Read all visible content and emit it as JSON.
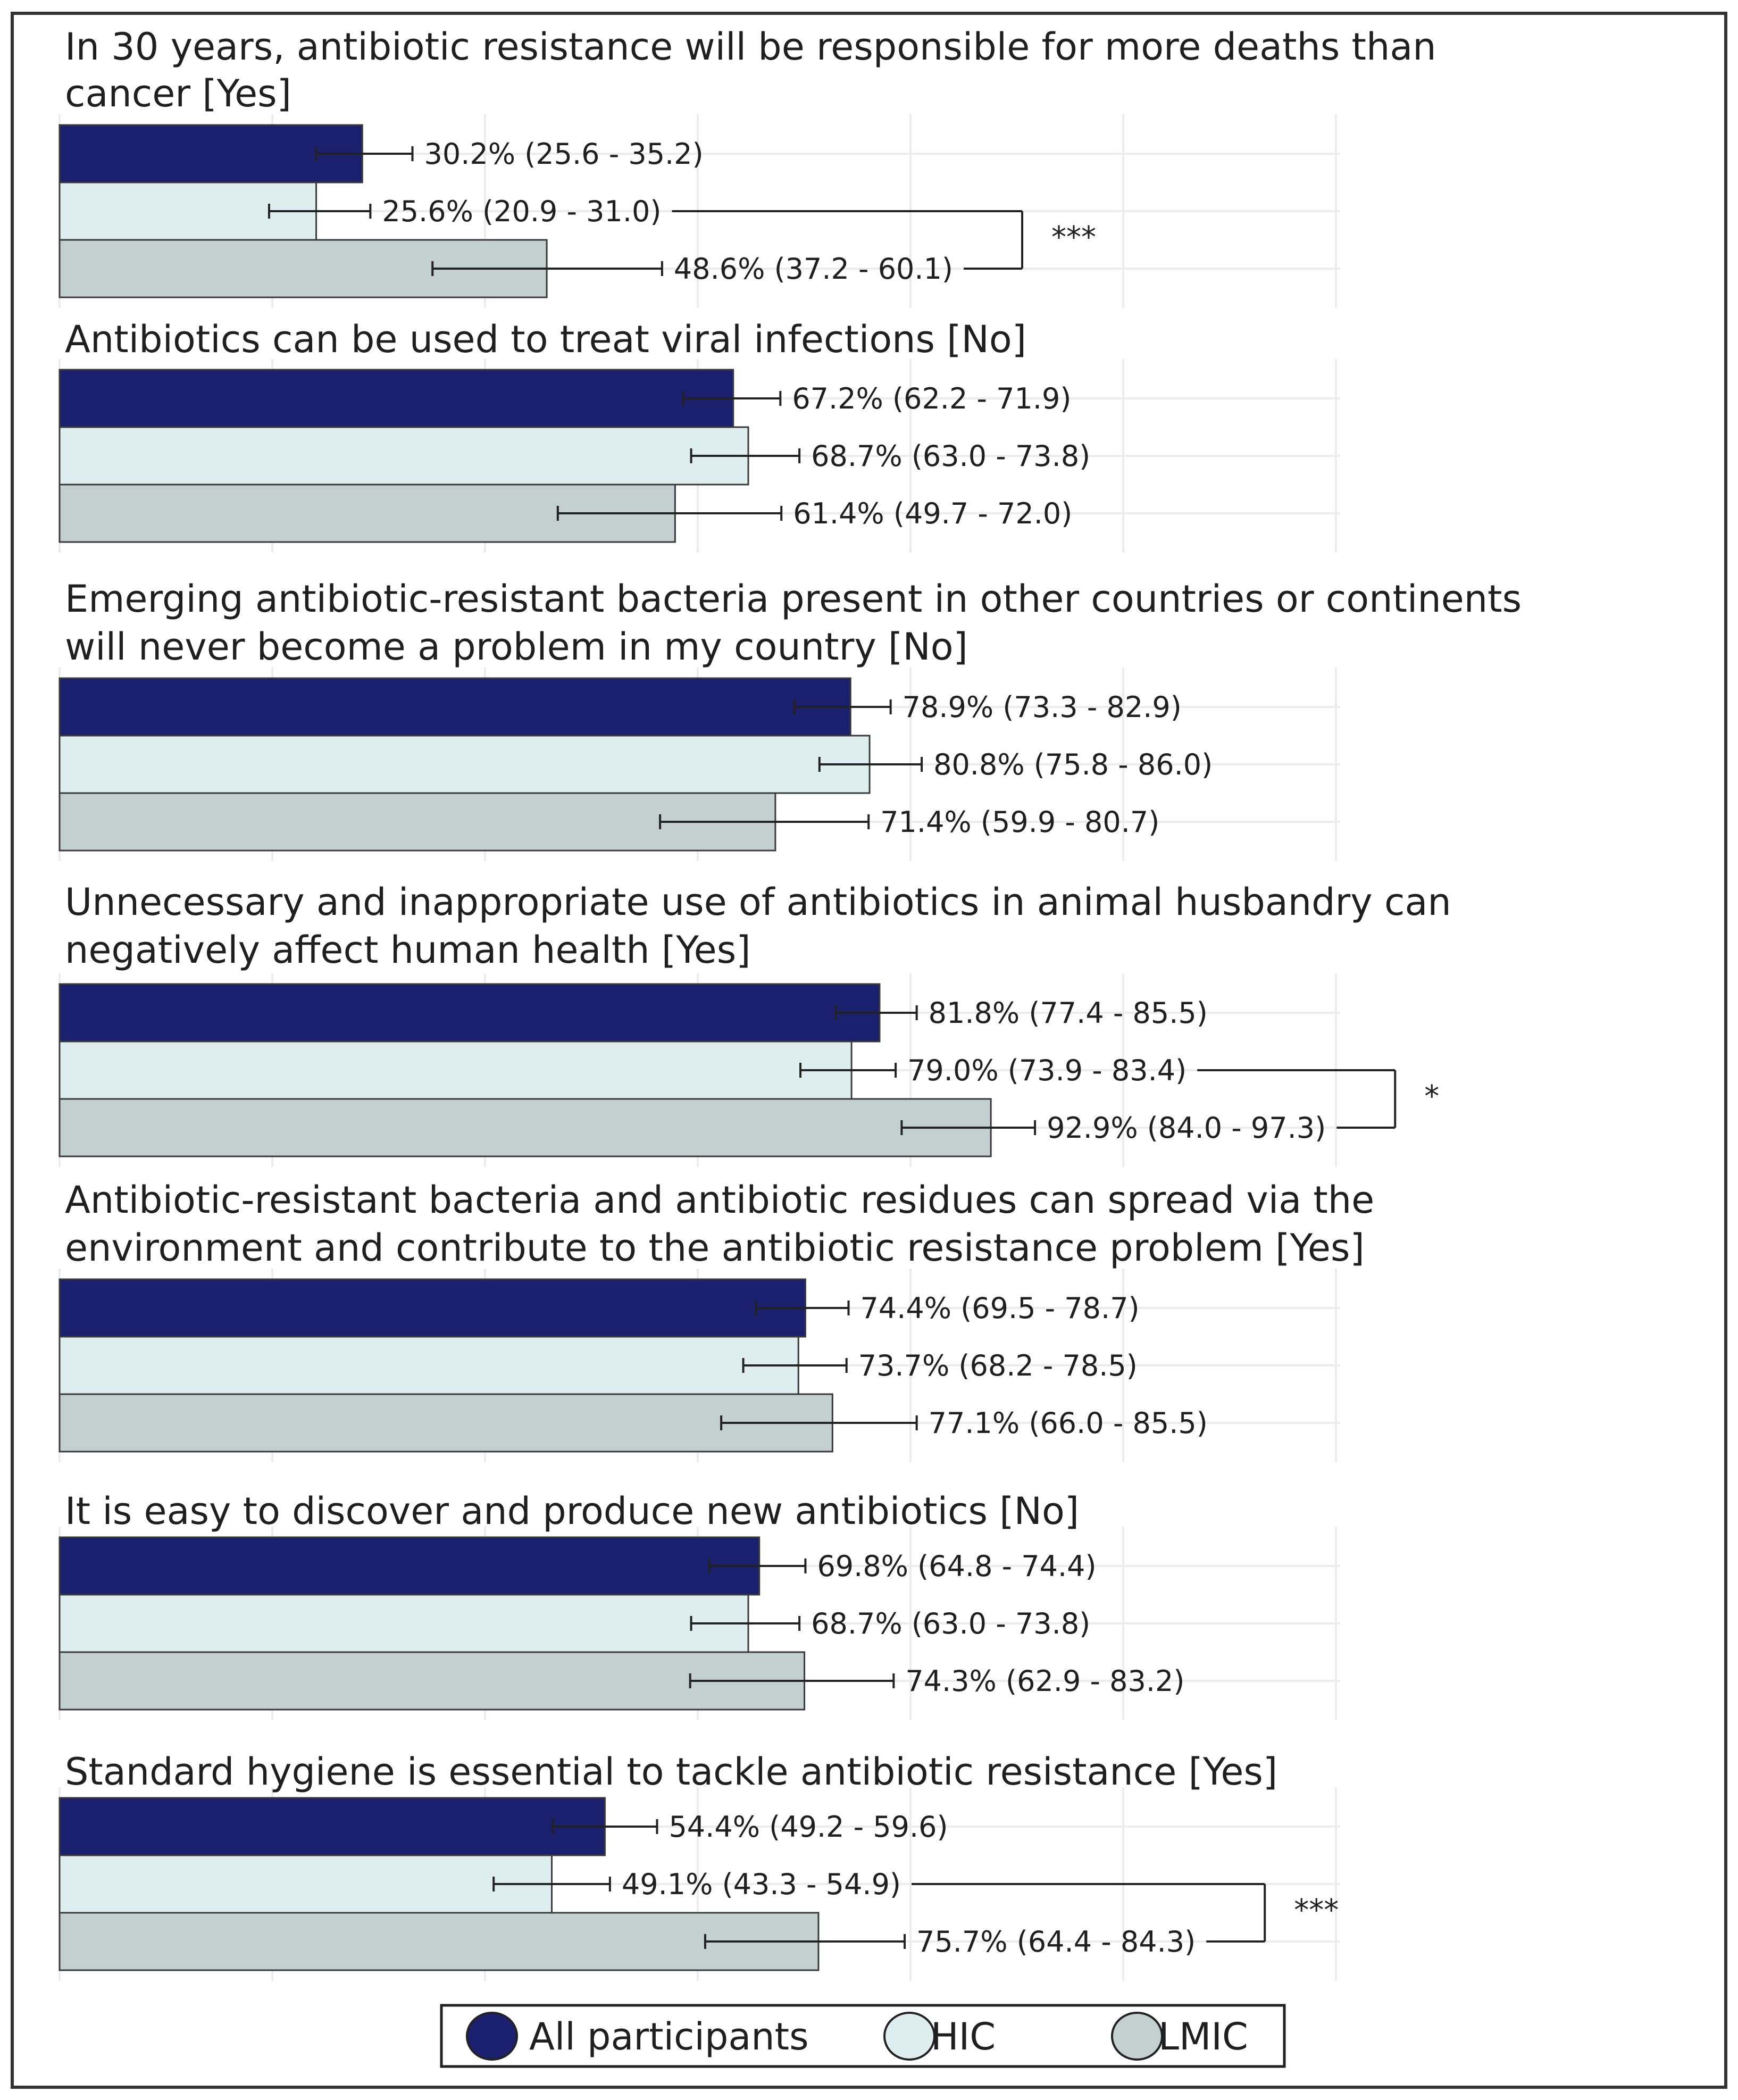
{
  "chart_data": {
    "type": "bar",
    "orientation": "horizontal",
    "x_unit": "%",
    "xlim": [
      0,
      100
    ],
    "grid": true,
    "legend": {
      "position": "bottom",
      "entries": [
        {
          "name": "All participants",
          "color": "#1a1f6e"
        },
        {
          "name": "HIC",
          "color": "#deeeef"
        },
        {
          "name": "LMIC",
          "color": "#c4cfcf"
        }
      ]
    },
    "questions": [
      {
        "title": [
          "In 30 years, antibiotic resistance will be responsible for more deaths than",
          "cancer [Yes]"
        ],
        "values": [
          30.2,
          25.6,
          48.6
        ],
        "ci_low": [
          25.6,
          20.9,
          37.2
        ],
        "ci_high": [
          35.2,
          31.0,
          60.1
        ],
        "labels": [
          "30.2% (25.6 - 35.2)",
          "25.6% (20.9 - 31.0)",
          "48.6% (37.2 - 60.1)"
        ],
        "significance": "***"
      },
      {
        "title": [
          "Antibiotics can be used to treat viral infections [No]"
        ],
        "values": [
          67.2,
          68.7,
          61.4
        ],
        "ci_low": [
          62.2,
          63.0,
          49.7
        ],
        "ci_high": [
          71.9,
          73.8,
          72.0
        ],
        "labels": [
          "67.2% (62.2 - 71.9)",
          "68.7% (63.0 - 73.8)",
          "61.4% (49.7 - 72.0)"
        ],
        "significance": ""
      },
      {
        "title": [
          "Emerging antibiotic-resistant bacteria present in other countries or continents",
          "will never become a problem in my country [No]"
        ],
        "values": [
          78.9,
          80.8,
          71.4
        ],
        "ci_low": [
          73.3,
          75.8,
          59.9
        ],
        "ci_high": [
          82.9,
          86.0,
          80.7
        ],
        "labels": [
          "78.9% (73.3 - 82.9)",
          "80.8% (75.8 - 86.0)",
          "71.4% (59.9 - 80.7)"
        ],
        "significance": ""
      },
      {
        "title": [
          "Unnecessary and inappropriate use of antibiotics in animal husbandry can",
          "negatively affect human health [Yes]"
        ],
        "values": [
          81.8,
          79.0,
          92.9
        ],
        "ci_low": [
          77.4,
          73.9,
          84.0
        ],
        "ci_high": [
          85.5,
          83.4,
          97.3
        ],
        "labels": [
          "81.8% (77.4 - 85.5)",
          "79.0% (73.9 - 83.4)",
          "92.9% (84.0 - 97.3)"
        ],
        "significance": "*"
      },
      {
        "title": [
          "Antibiotic-resistant bacteria and antibiotic residues can spread via the",
          "environment and contribute to the antibiotic resistance problem [Yes]"
        ],
        "values": [
          74.4,
          73.7,
          77.1
        ],
        "ci_low": [
          69.5,
          68.2,
          66.0
        ],
        "ci_high": [
          78.7,
          78.5,
          85.5
        ],
        "labels": [
          "74.4% (69.5 - 78.7)",
          "73.7% (68.2 - 78.5)",
          "77.1% (66.0 - 85.5)"
        ],
        "significance": ""
      },
      {
        "title": [
          "It is easy to discover and produce new antibiotics [No]"
        ],
        "values": [
          69.8,
          68.7,
          74.3
        ],
        "ci_low": [
          64.8,
          63.0,
          62.9
        ],
        "ci_high": [
          74.4,
          73.8,
          83.2
        ],
        "labels": [
          "69.8% (64.8 - 74.4)",
          "68.7% (63.0 - 73.8)",
          "74.3% (62.9 - 83.2)"
        ],
        "significance": ""
      },
      {
        "title": [
          "Standard hygiene is essential to tackle antibiotic resistance [Yes]"
        ],
        "values": [
          54.4,
          49.1,
          75.7
        ],
        "ci_low": [
          49.2,
          43.3,
          64.4
        ],
        "ci_high": [
          59.6,
          54.9,
          84.3
        ],
        "labels": [
          "54.4% (49.2 - 59.6)",
          "49.1% (43.3 - 54.9)",
          "75.7% (64.4 - 84.3)"
        ],
        "significance": "***"
      }
    ]
  }
}
